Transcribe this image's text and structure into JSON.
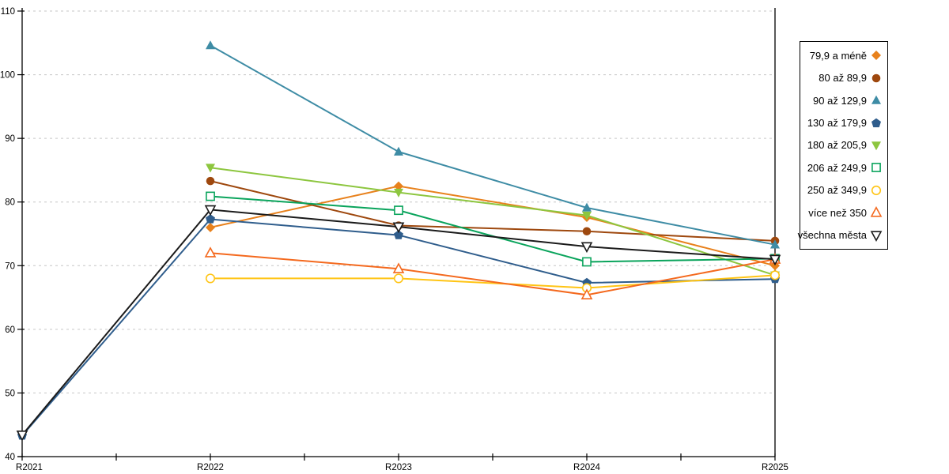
{
  "chart_data": {
    "type": "line",
    "title": "",
    "xlabel": "",
    "ylabel": "",
    "categories": [
      "R2021",
      "R2022",
      "R2023",
      "R2024",
      "R2025"
    ],
    "y_ticks": [
      40,
      50,
      60,
      70,
      80,
      90,
      100,
      110
    ],
    "ylim": [
      40,
      110
    ],
    "grid": "horizontal-dashed",
    "legend_position": "right-outside",
    "series": [
      {
        "name": "79,9 a méně",
        "color": "#E8811C",
        "marker": "diamond",
        "fill": "solid",
        "values": [
          null,
          76.0,
          82.5,
          77.6,
          70.0
        ]
      },
      {
        "name": "80 až 89,9",
        "color": "#9E480E",
        "marker": "circle",
        "fill": "solid",
        "values": [
          null,
          83.3,
          76.3,
          75.4,
          73.9
        ]
      },
      {
        "name": "90 až 129,9",
        "color": "#3E8CA5",
        "marker": "triangle-up",
        "fill": "solid",
        "values": [
          null,
          104.6,
          87.9,
          79.1,
          73.3
        ]
      },
      {
        "name": "130 až 179,9",
        "color": "#2F5D8C",
        "marker": "pentagon",
        "fill": "solid",
        "values": [
          43.3,
          77.3,
          74.8,
          67.3,
          67.9
        ]
      },
      {
        "name": "180 až 205,9",
        "color": "#8DC63F",
        "marker": "triangle-down",
        "fill": "solid",
        "values": [
          null,
          85.4,
          81.5,
          77.9,
          68.5
        ]
      },
      {
        "name": "206 až 249,9",
        "color": "#0AA45C",
        "marker": "square",
        "fill": "hollow",
        "values": [
          null,
          80.9,
          78.7,
          70.6,
          71.1
        ]
      },
      {
        "name": "250 až 349,9",
        "color": "#FFC414",
        "marker": "circle",
        "fill": "hollow",
        "values": [
          null,
          68.0,
          68.0,
          66.5,
          68.5
        ]
      },
      {
        "name": "více než 350",
        "color": "#F4691E",
        "marker": "triangle-up",
        "fill": "hollow",
        "values": [
          null,
          72.0,
          69.5,
          65.4,
          71.0
        ]
      },
      {
        "name": "všechna města",
        "color": "#1A1A1A",
        "marker": "triangle-down",
        "fill": "hollow",
        "values": [
          43.4,
          78.8,
          76.1,
          73.0,
          71.0
        ]
      }
    ]
  },
  "colors": {
    "background": "#FFFFFF",
    "gridline": "#C6C6C6",
    "axis": "#000000",
    "legend_border": "#000000",
    "tick_label": "#000000"
  }
}
